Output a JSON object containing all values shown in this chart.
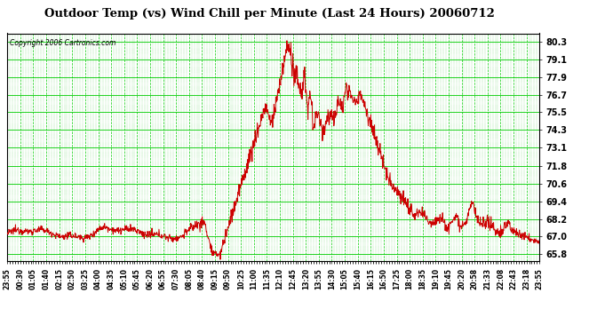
{
  "title": "Outdoor Temp (vs) Wind Chill per Minute (Last 24 Hours) 20060712",
  "copyright": "Copyright 2006 Cartronics.com",
  "line_color": "#cc0000",
  "yticks": [
    65.8,
    67.0,
    68.2,
    69.4,
    70.6,
    71.8,
    73.1,
    74.3,
    75.5,
    76.7,
    77.9,
    79.1,
    80.3
  ],
  "ylim": [
    65.3,
    80.9
  ],
  "x_labels": [
    "23:55",
    "00:30",
    "01:05",
    "01:40",
    "02:15",
    "02:50",
    "03:25",
    "04:00",
    "04:35",
    "05:10",
    "05:45",
    "06:20",
    "06:55",
    "07:30",
    "08:05",
    "08:40",
    "09:15",
    "09:50",
    "10:25",
    "11:00",
    "11:35",
    "12:10",
    "12:45",
    "13:20",
    "13:55",
    "14:30",
    "15:05",
    "15:40",
    "16:15",
    "16:50",
    "17:25",
    "18:00",
    "18:35",
    "19:10",
    "19:45",
    "20:20",
    "20:58",
    "21:33",
    "22:08",
    "22:43",
    "23:18",
    "23:55"
  ],
  "figsize": [
    6.9,
    3.75
  ],
  "dpi": 100
}
